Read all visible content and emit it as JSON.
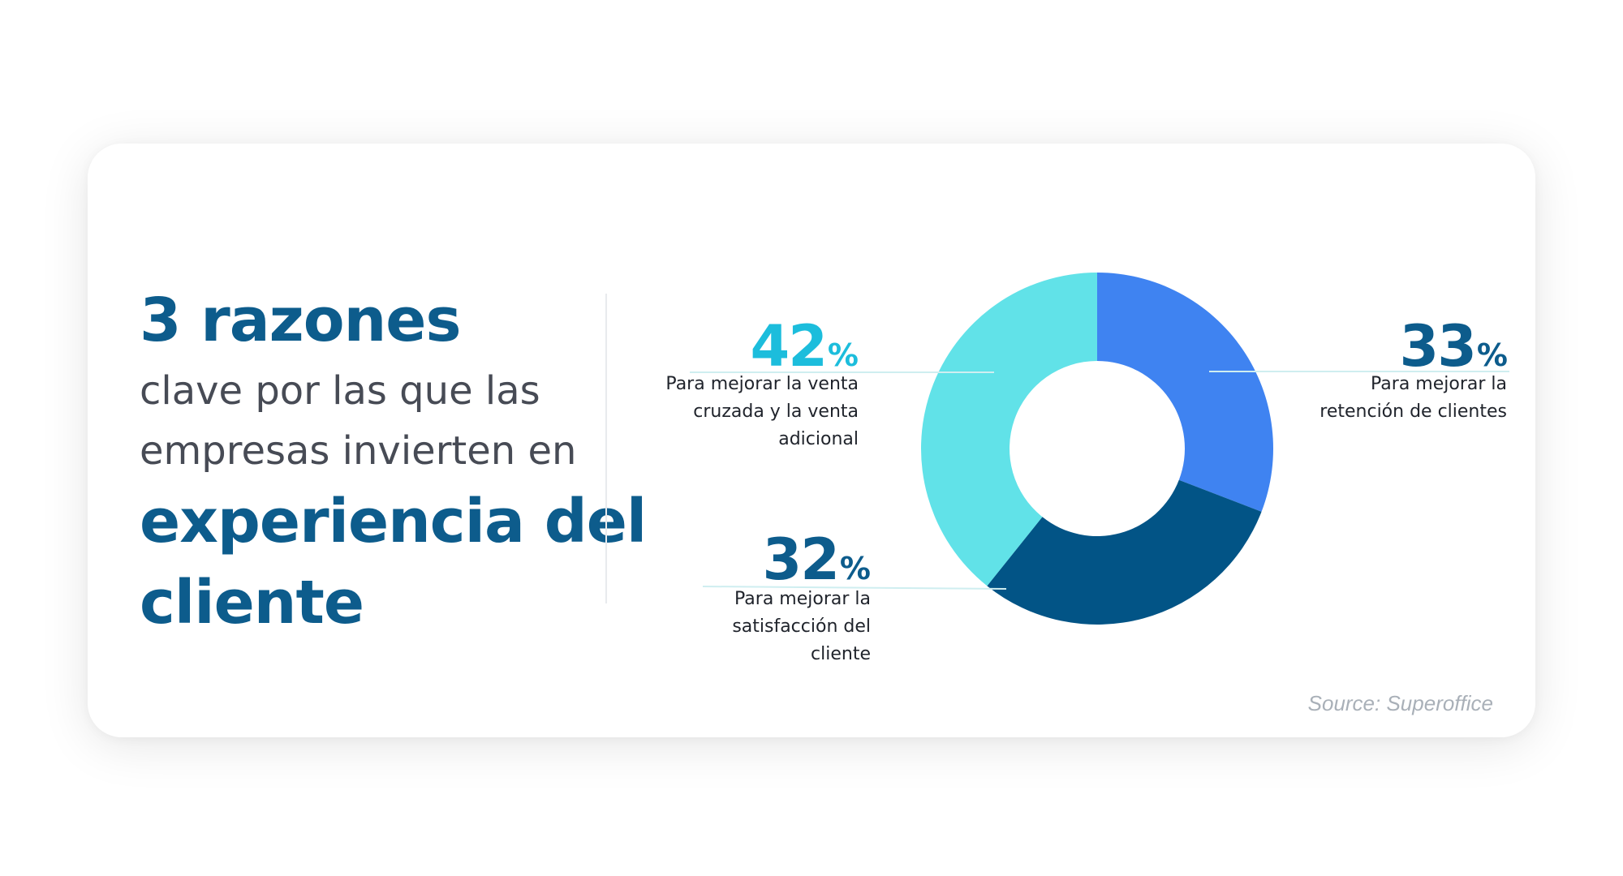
{
  "headline": {
    "line1": "3 razones",
    "line2": "clave por las que las",
    "line3": "empresas invierten en",
    "line4": "experiencia del",
    "line5": "cliente"
  },
  "colors": {
    "dark_blue": "#0d5c8c",
    "bright_blue": "#3f83f1",
    "light_cyan": "#61e2e8",
    "cyan_text": "#1cbddc",
    "navy": "#025486"
  },
  "chart_data": {
    "type": "pie",
    "donut": true,
    "slices": [
      {
        "value": 33,
        "value_text": "33",
        "unit": "%",
        "label": [
          "Para mejorar la",
          "retención de clientes"
        ],
        "color": "#3f83f1"
      },
      {
        "value": 32,
        "value_text": "32",
        "unit": "%",
        "label": [
          "Para mejorar la",
          "satisfacción del",
          "cliente"
        ],
        "color": "#025486"
      },
      {
        "value": 42,
        "value_text": "42",
        "unit": "%",
        "label": [
          "Para mejorar la venta",
          "cruzada y la venta",
          "adicional"
        ],
        "color": "#61e2e8"
      }
    ]
  },
  "source": "Source: Superoffice"
}
